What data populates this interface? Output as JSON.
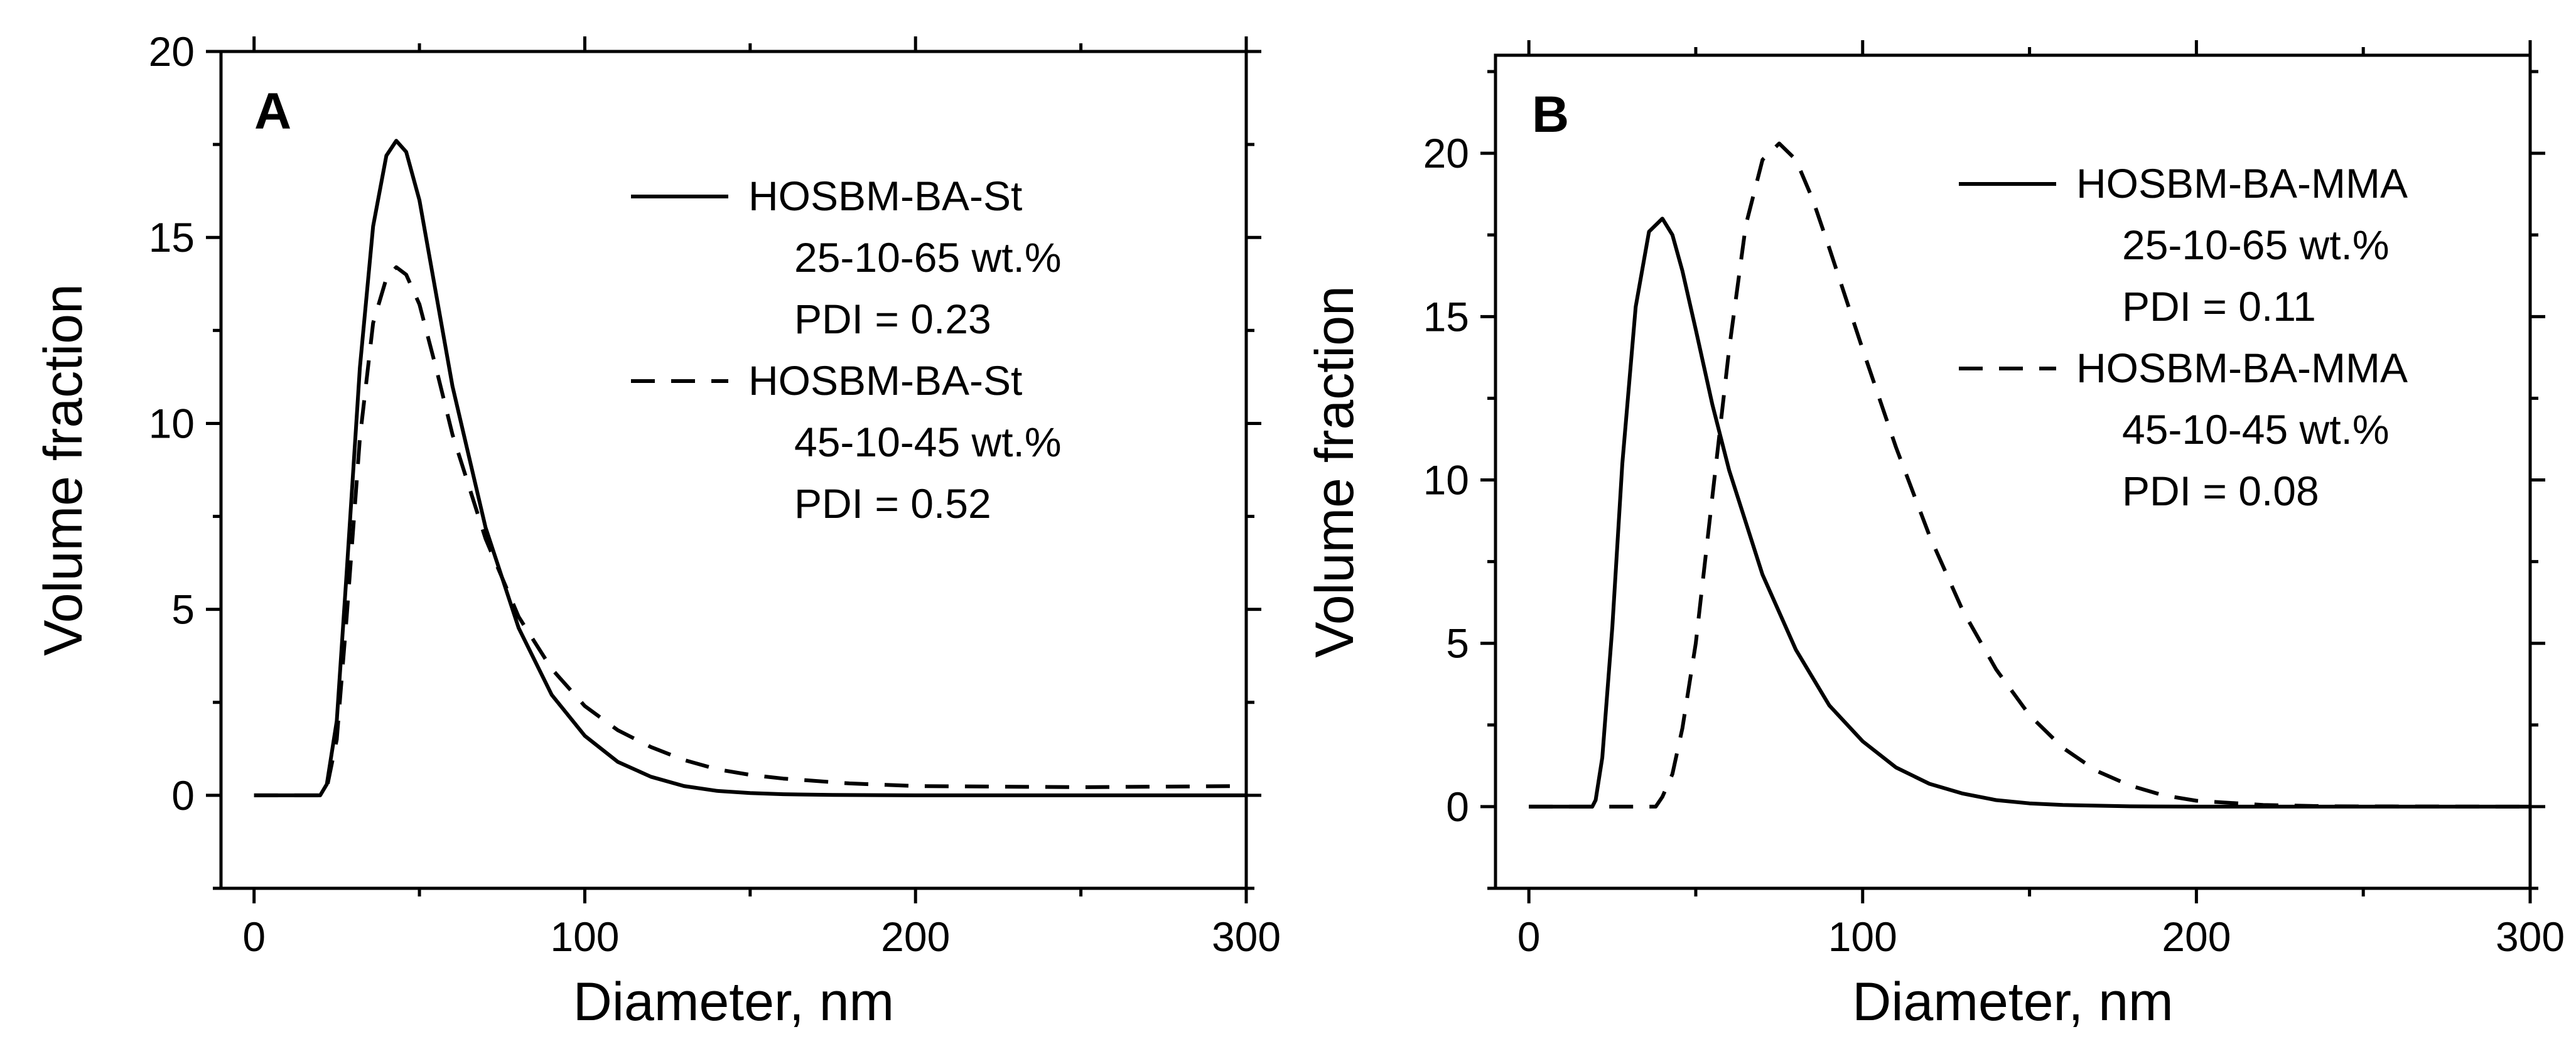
{
  "chart_data": [
    {
      "type": "line",
      "panel_label": "A",
      "xlabel": "Diameter, nm",
      "ylabel": "Volume fraction",
      "xlim": [
        -10,
        300
      ],
      "ylim": [
        -2.5,
        20
      ],
      "xticks": [
        0,
        100,
        200,
        300
      ],
      "yticks": [
        0,
        5,
        10,
        15,
        20
      ],
      "grid": false,
      "legend_position": "top-right",
      "series": [
        {
          "name": "HOSBM-BA-St",
          "legend_lines": [
            "HOSBM-BA-St",
            "25-10-65 wt.%",
            "PDI = 0.23"
          ],
          "style": "solid",
          "x": [
            0,
            20,
            22,
            25,
            28,
            32,
            36,
            40,
            43,
            46,
            50,
            55,
            60,
            70,
            80,
            90,
            100,
            110,
            120,
            130,
            140,
            150,
            160,
            175,
            200,
            250,
            300
          ],
          "y": [
            0,
            0,
            0.3,
            2.0,
            6.0,
            11.5,
            15.3,
            17.2,
            17.6,
            17.3,
            16.0,
            13.5,
            11.0,
            7.2,
            4.5,
            2.7,
            1.6,
            0.9,
            0.5,
            0.25,
            0.12,
            0.06,
            0.03,
            0.01,
            0,
            0,
            0
          ]
        },
        {
          "name": "HOSBM-BA-St",
          "legend_lines": [
            "HOSBM-BA-St",
            "45-10-45 wt.%",
            "PDI = 0.52"
          ],
          "style": "dashed",
          "x": [
            0,
            20,
            22,
            25,
            28,
            32,
            36,
            40,
            43,
            46,
            50,
            55,
            60,
            70,
            80,
            90,
            100,
            110,
            120,
            130,
            140,
            150,
            160,
            180,
            200,
            250,
            300
          ],
          "y": [
            0,
            0,
            0.2,
            1.5,
            4.8,
            9.6,
            12.7,
            13.9,
            14.2,
            14.0,
            13.2,
            11.5,
            9.7,
            6.9,
            4.8,
            3.4,
            2.4,
            1.75,
            1.3,
            0.95,
            0.7,
            0.55,
            0.45,
            0.32,
            0.25,
            0.22,
            0.25
          ]
        }
      ]
    },
    {
      "type": "line",
      "panel_label": "B",
      "xlabel": "Diameter, nm",
      "ylabel": "Volume fraction",
      "xlim": [
        -10,
        300
      ],
      "ylim": [
        -2.5,
        23
      ],
      "xticks": [
        0,
        100,
        200,
        300
      ],
      "yticks": [
        0,
        5,
        10,
        15,
        20
      ],
      "grid": false,
      "legend_position": "top-right",
      "series": [
        {
          "name": "HOSBM-BA-MMA",
          "legend_lines": [
            "HOSBM-BA-MMA",
            "25-10-65 wt.%",
            "PDI = 0.11"
          ],
          "style": "solid",
          "x": [
            0,
            19,
            20,
            22,
            25,
            28,
            32,
            36,
            40,
            43,
            46,
            50,
            55,
            60,
            70,
            80,
            90,
            100,
            110,
            120,
            130,
            140,
            150,
            160,
            180,
            200,
            300
          ],
          "y": [
            0,
            0,
            0.2,
            1.5,
            5.5,
            10.5,
            15.3,
            17.6,
            18.0,
            17.5,
            16.4,
            14.6,
            12.3,
            10.3,
            7.1,
            4.8,
            3.1,
            2.0,
            1.2,
            0.7,
            0.4,
            0.2,
            0.1,
            0.05,
            0.01,
            0,
            0
          ]
        },
        {
          "name": "HOSBM-BA-MMA",
          "legend_lines": [
            "HOSBM-BA-MMA",
            "45-10-45 wt.%",
            "PDI = 0.08"
          ],
          "style": "dashed",
          "x": [
            0,
            38,
            40,
            43,
            46,
            50,
            55,
            60,
            65,
            70,
            75,
            80,
            85,
            90,
            100,
            110,
            120,
            130,
            140,
            150,
            160,
            170,
            180,
            190,
            200,
            220,
            240,
            300
          ],
          "y": [
            0,
            0,
            0.3,
            1.0,
            2.4,
            5.0,
            9.5,
            14.0,
            17.8,
            19.8,
            20.3,
            19.8,
            18.6,
            17.1,
            14.0,
            11.0,
            8.3,
            6.0,
            4.2,
            2.8,
            1.8,
            1.1,
            0.65,
            0.35,
            0.18,
            0.05,
            0.01,
            0
          ]
        }
      ]
    }
  ]
}
